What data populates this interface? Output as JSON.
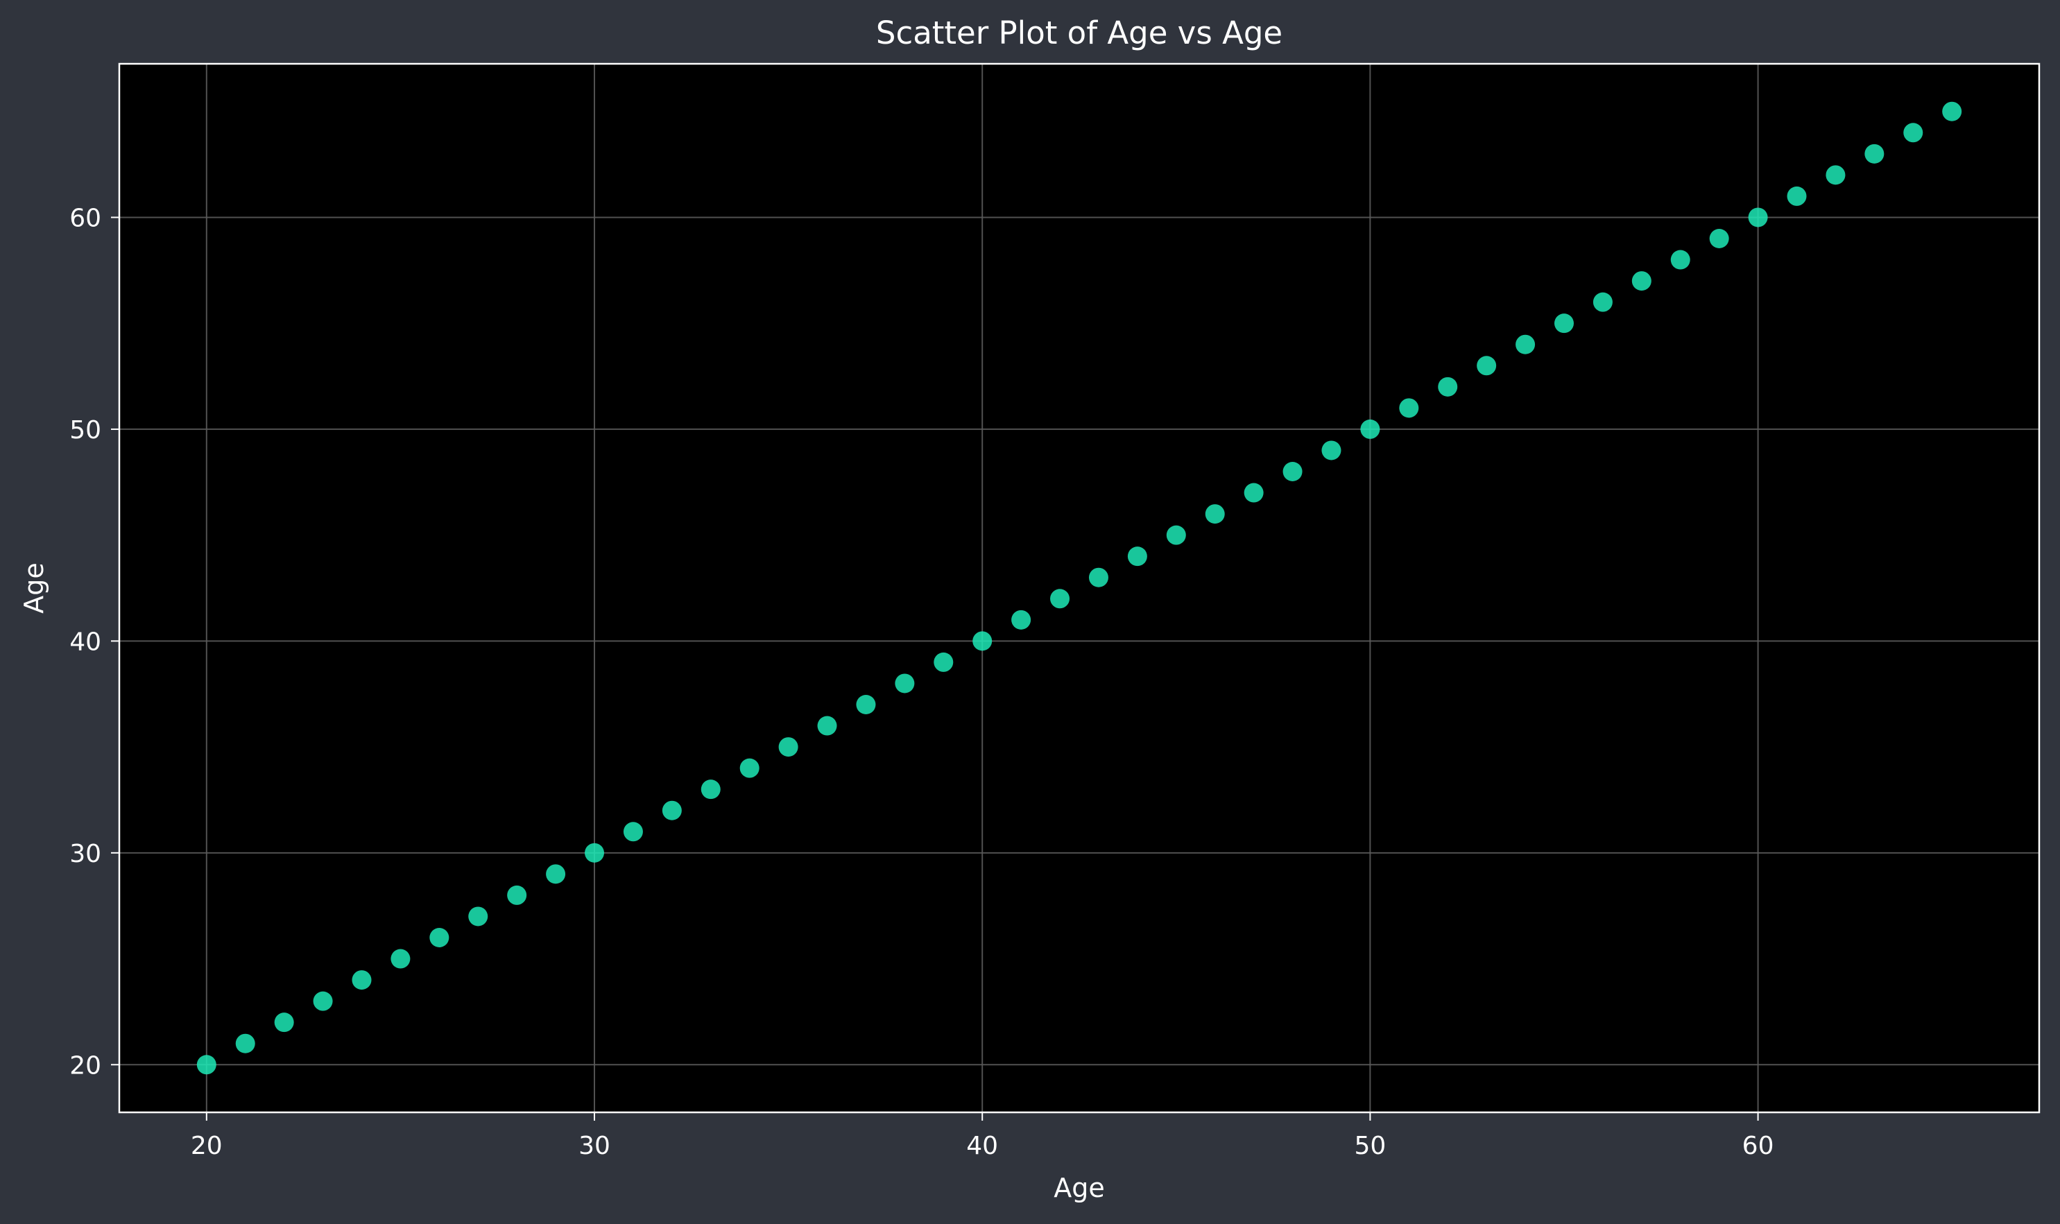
{
  "chart_data": {
    "type": "scatter",
    "title": "Scatter Plot of Age vs Age",
    "xlabel": "Age",
    "ylabel": "Age",
    "xlim": [
      17.75,
      67.25
    ],
    "ylim": [
      17.75,
      67.25
    ],
    "xticks": [
      20,
      30,
      40,
      50,
      60
    ],
    "yticks": [
      20,
      30,
      40,
      50,
      60
    ],
    "grid": true,
    "legend": "none",
    "x": [
      20,
      21,
      22,
      23,
      24,
      25,
      26,
      27,
      28,
      29,
      30,
      31,
      32,
      33,
      34,
      35,
      36,
      37,
      38,
      39,
      40,
      41,
      42,
      43,
      44,
      45,
      46,
      47,
      48,
      49,
      50,
      51,
      52,
      53,
      54,
      55,
      56,
      57,
      58,
      59,
      60,
      61,
      62,
      63,
      64,
      65
    ],
    "y": [
      20,
      21,
      22,
      23,
      24,
      25,
      26,
      27,
      28,
      29,
      30,
      31,
      32,
      33,
      34,
      35,
      36,
      37,
      38,
      39,
      40,
      41,
      42,
      43,
      44,
      45,
      46,
      47,
      48,
      49,
      50,
      51,
      52,
      53,
      54,
      55,
      56,
      57,
      58,
      59,
      60,
      61,
      62,
      63,
      64,
      65
    ],
    "colors": {
      "figure_background": "#30343d",
      "plot_background": "#000000",
      "point": "#1de9b6",
      "grid": "#5a5a5a",
      "axes": "#ffffff",
      "text": "#ffffff"
    }
  }
}
